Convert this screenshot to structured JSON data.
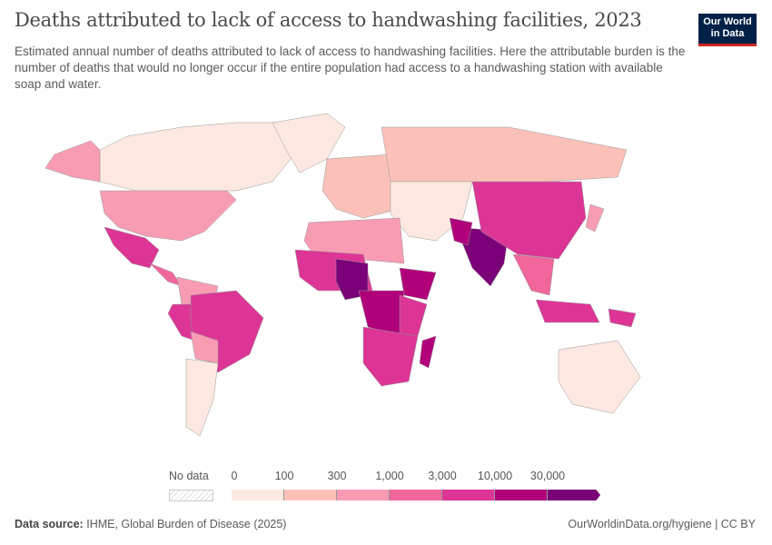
{
  "header": {
    "title": "Deaths attributed to lack of access to handwashing facilities, 2023",
    "subtitle": "Estimated annual number of deaths attributed to lack of access to handwashing facilities. Here the attributable burden is the number of deaths that would no longer occur if the entire population had access to a handwashing station with available soap and water.",
    "logo": "Our World in Data"
  },
  "legend": {
    "no_data": "No data",
    "ticks": [
      "0",
      "100",
      "300",
      "1,000",
      "3,000",
      "10,000",
      "30,000"
    ],
    "colors": [
      "#fde9e1",
      "#fbc1b8",
      "#f89cb4",
      "#f1669b",
      "#dc3596",
      "#b0007a",
      "#7a0177"
    ]
  },
  "map": {
    "ocean": "#ffffff",
    "regions": [
      {
        "name": "canada",
        "level": 0
      },
      {
        "name": "alaska",
        "level": 2
      },
      {
        "name": "greenland",
        "level": 0
      },
      {
        "name": "united-states",
        "level": 2
      },
      {
        "name": "mexico",
        "level": 4
      },
      {
        "name": "central-america",
        "level": 3
      },
      {
        "name": "colombia-venezuela",
        "level": 2
      },
      {
        "name": "peru",
        "level": 4
      },
      {
        "name": "brazil",
        "level": 4
      },
      {
        "name": "bolivia-paraguay",
        "level": 2
      },
      {
        "name": "argentina-chile",
        "level": 0
      },
      {
        "name": "europe",
        "level": 1
      },
      {
        "name": "russia",
        "level": 1
      },
      {
        "name": "middle-east-central-asia",
        "level": 0
      },
      {
        "name": "north-africa",
        "level": 2
      },
      {
        "name": "west-africa",
        "level": 4
      },
      {
        "name": "nigeria",
        "level": 6
      },
      {
        "name": "ethiopia",
        "level": 5
      },
      {
        "name": "central-africa",
        "level": 5
      },
      {
        "name": "east-africa",
        "level": 4
      },
      {
        "name": "southern-africa",
        "level": 4
      },
      {
        "name": "madagascar",
        "level": 5
      },
      {
        "name": "india",
        "level": 6
      },
      {
        "name": "pakistan",
        "level": 5
      },
      {
        "name": "china",
        "level": 4
      },
      {
        "name": "southeast-asia",
        "level": 3
      },
      {
        "name": "indonesia",
        "level": 4
      },
      {
        "name": "papua-new-guinea",
        "level": 4
      },
      {
        "name": "australia",
        "level": 0
      },
      {
        "name": "japan",
        "level": 2
      }
    ]
  },
  "footer": {
    "source_label": "Data source:",
    "source": "IHME, Global Burden of Disease (2025)",
    "url": "OurWorldinData.org/hygiene | CC BY"
  }
}
